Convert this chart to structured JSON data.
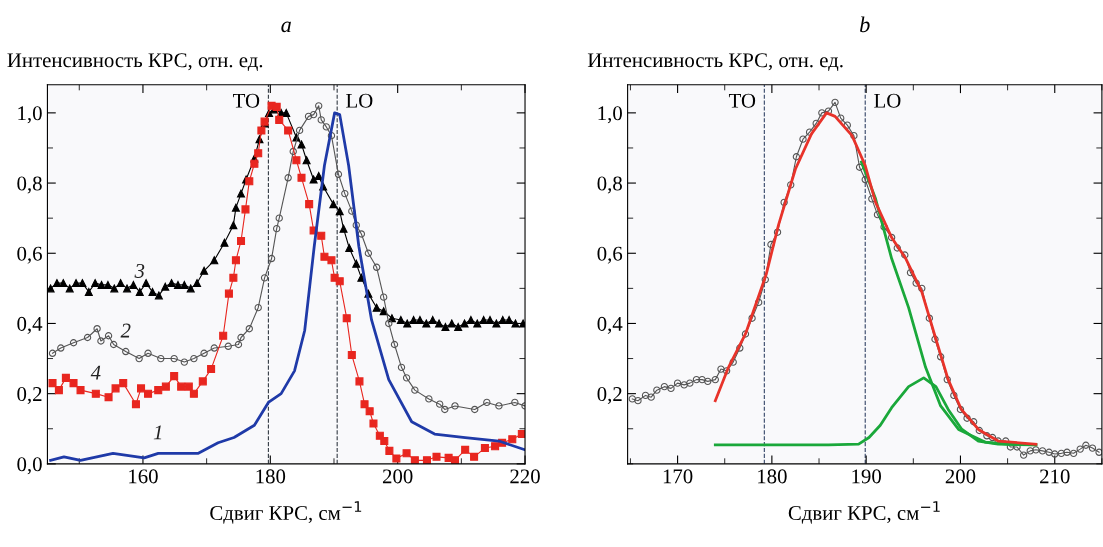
{
  "chart_data": [
    {
      "type": "line",
      "title": "a",
      "ylabel": "Интенсивность КРС, отн. ед.",
      "xlabel": "Сдвиг КРС, см$^{−1}$",
      "xlim": [
        145,
        220
      ],
      "xticks": [
        160,
        180,
        200,
        220
      ],
      "ylim": [
        0,
        1.08
      ],
      "yticks": [
        {
          "value": 0,
          "label": "0,0"
        },
        {
          "value": 0.2,
          "label": "0,2"
        },
        {
          "value": 0.4,
          "label": "0,4"
        },
        {
          "value": 0.6,
          "label": "0,6"
        },
        {
          "value": 0.8,
          "label": "0,8"
        },
        {
          "value": 1.0,
          "label": "1,0"
        }
      ],
      "ref_lines": [
        {
          "axis": "x",
          "value": 179.7,
          "label": "TO",
          "color": "#333a44",
          "line_style": "dashed"
        },
        {
          "axis": "x",
          "value": 190.5,
          "label": "LO",
          "color": "#333a44",
          "line_style": "dashed"
        }
      ],
      "series": [
        {
          "name": "3",
          "color": "#000000",
          "marker": "triangle",
          "x": [
            145.5,
            146.5,
            147.5,
            148.5,
            149.5,
            150.5,
            151.5,
            152.5,
            153.5,
            154.5,
            155.5,
            156.5,
            157.5,
            158.5,
            159.5,
            160.5,
            161.5,
            162.5,
            163.5,
            164.5,
            165.5,
            166.5,
            167.5,
            168.5,
            169.6,
            171.2,
            172.8,
            174.2,
            174.6,
            175.4,
            176.2,
            177.5,
            178.3,
            179.1,
            179.8,
            180.6,
            181.7,
            182.5,
            184.1,
            184.9,
            185.7,
            186.8,
            187.6,
            188.3,
            189.9,
            190.9,
            191.5,
            192.4,
            193.5,
            194.3,
            195.4,
            196.7,
            197.8,
            199.1,
            200.5,
            201.5,
            202.5,
            203.5,
            204.5,
            205.5,
            206.5,
            207.5,
            208.5,
            209.5,
            210.5,
            211.5,
            212.5,
            213.5,
            214.5,
            215.5,
            216.5,
            217.5,
            218.5,
            219.7
          ],
          "values": [
            0.5,
            0.515,
            0.515,
            0.5,
            0.515,
            0.515,
            0.49,
            0.515,
            0.51,
            0.51,
            0.5,
            0.515,
            0.5,
            0.51,
            0.49,
            0.515,
            0.49,
            0.48,
            0.505,
            0.515,
            0.51,
            0.51,
            0.5,
            0.515,
            0.55,
            0.58,
            0.63,
            0.68,
            0.73,
            0.77,
            0.81,
            0.87,
            0.925,
            0.97,
            1.0,
            1.01,
            1.0,
            1.0,
            0.93,
            0.91,
            0.865,
            0.81,
            0.82,
            0.79,
            0.74,
            0.72,
            0.67,
            0.615,
            0.57,
            0.53,
            0.485,
            0.445,
            0.435,
            0.415,
            0.41,
            0.4,
            0.41,
            0.41,
            0.4,
            0.41,
            0.4,
            0.39,
            0.4,
            0.39,
            0.4,
            0.41,
            0.4,
            0.41,
            0.41,
            0.4,
            0.41,
            0.41,
            0.4,
            0.4
          ]
        },
        {
          "name": "2",
          "color": "#555555",
          "marker": "circle",
          "x": [
            145.8,
            147.1,
            149.1,
            151.3,
            152.8,
            153.4,
            154.6,
            155.4,
            157.3,
            159.4,
            160.8,
            162.8,
            164.9,
            166.5,
            168,
            169.6,
            171.2,
            173.4,
            175,
            175.4,
            176.7,
            178.1,
            179.1,
            180.2,
            181,
            181.4,
            182.8,
            183.6,
            184.6,
            186,
            186.8,
            187.6,
            188,
            188.8,
            189.6,
            190.7,
            191.7,
            192.8,
            193.5,
            194.3,
            195.4,
            196.7,
            197.8,
            198.6,
            199.5,
            200.6,
            201.4,
            202.7,
            204.9,
            206.6,
            207.4,
            209,
            212.1,
            214,
            215.9,
            218.4,
            220
          ],
          "values": [
            0.315,
            0.33,
            0.345,
            0.36,
            0.385,
            0.35,
            0.365,
            0.34,
            0.32,
            0.3,
            0.315,
            0.3,
            0.3,
            0.29,
            0.3,
            0.315,
            0.33,
            0.335,
            0.34,
            0.36,
            0.385,
            0.445,
            0.53,
            0.585,
            0.67,
            0.7,
            0.815,
            0.89,
            0.95,
            0.99,
            0.995,
            1.02,
            0.98,
            0.96,
            0.935,
            0.825,
            0.77,
            0.72,
            0.68,
            0.655,
            0.6,
            0.56,
            0.475,
            0.4,
            0.34,
            0.275,
            0.245,
            0.21,
            0.185,
            0.17,
            0.155,
            0.165,
            0.155,
            0.175,
            0.165,
            0.175,
            0.165
          ]
        },
        {
          "name": "4",
          "color": "#e8261f",
          "marker": "square",
          "x": [
            145.8,
            146.8,
            147.9,
            149.1,
            150.2,
            152.6,
            154.6,
            155.7,
            156.9,
            158.9,
            159.7,
            160.8,
            162.4,
            163.6,
            164.9,
            166,
            167.2,
            168,
            169.4,
            170.7,
            172.6,
            173.5,
            174.2,
            174.6,
            175.4,
            176.1,
            176.7,
            177.5,
            178.1,
            178.6,
            179.1,
            180.2,
            181,
            181.4,
            182.8,
            184.1,
            184.9,
            186.1,
            186.8,
            188,
            188.5,
            189.6,
            190.1,
            190.9,
            192,
            192.8,
            194,
            194.8,
            195.6,
            196.2,
            197.2,
            197.9,
            198.7,
            199.8,
            201.4,
            202.7,
            204.6,
            206.1,
            208,
            209,
            210.6,
            212,
            213.7,
            215.3,
            216.4,
            218,
            219.5
          ],
          "values": [
            0.23,
            0.21,
            0.245,
            0.23,
            0.21,
            0.2,
            0.19,
            0.215,
            0.23,
            0.17,
            0.215,
            0.2,
            0.21,
            0.22,
            0.25,
            0.22,
            0.22,
            0.2,
            0.235,
            0.27,
            0.365,
            0.485,
            0.53,
            0.58,
            0.635,
            0.725,
            0.805,
            0.855,
            0.885,
            0.95,
            0.975,
            1.02,
            1.017,
            0.98,
            0.95,
            0.865,
            0.815,
            0.74,
            0.665,
            0.65,
            0.59,
            0.58,
            0.53,
            0.52,
            0.415,
            0.31,
            0.235,
            0.17,
            0.15,
            0.115,
            0.08,
            0.065,
            0.037,
            0.015,
            0.03,
            0.01,
            0.01,
            0.02,
            0.017,
            0.01,
            0.04,
            0.02,
            0.045,
            0.05,
            0.06,
            0.07,
            0.085
          ]
        },
        {
          "name": "1",
          "color": "#1f3aa8",
          "marker": "none",
          "x": [
            145.5,
            147.6,
            150.2,
            155.3,
            160.2,
            162.4,
            168.7,
            171.8,
            174.3,
            177.5,
            179.7,
            181.7,
            183.8,
            185.4,
            186.9,
            188.5,
            190.1,
            190.9,
            192.3,
            193.9,
            195.9,
            198.6,
            202.2,
            205.8,
            210.6,
            215.9,
            220
          ],
          "values": [
            0.01,
            0.02,
            0.01,
            0.03,
            0.017,
            0.03,
            0.03,
            0.06,
            0.075,
            0.11,
            0.175,
            0.2,
            0.265,
            0.38,
            0.62,
            0.85,
            1.0,
            0.995,
            0.85,
            0.62,
            0.41,
            0.24,
            0.12,
            0.085,
            0.075,
            0.065,
            0.04
          ]
        }
      ]
    },
    {
      "type": "line",
      "title": "b",
      "ylabel": "Интенсивность КРС, отн. ед.",
      "xlabel": "Сдвиг КРС, см$^{−1}$",
      "xlim": [
        164.7,
        215
      ],
      "xticks": [
        170,
        180,
        190,
        200,
        210
      ],
      "ylim": [
        0,
        1.08
      ],
      "yticks": [
        {
          "value": 0.2,
          "label": "0,2"
        },
        {
          "value": 0.4,
          "label": "0,4"
        },
        {
          "value": 0.6,
          "label": "0,6"
        },
        {
          "value": 0.8,
          "label": "0,8"
        },
        {
          "value": 1.0,
          "label": "1,0"
        }
      ],
      "ref_lines": [
        {
          "axis": "x",
          "value": 179.2,
          "label": "TO",
          "color": "#334466",
          "line_style": "dashed"
        },
        {
          "axis": "x",
          "value": 189.9,
          "label": "LO",
          "color": "#334466",
          "line_style": "dashed"
        }
      ],
      "series": [
        {
          "color": "#555555",
          "marker": "circle",
          "x": [
            165.2,
            165.8,
            166.6,
            167.2,
            167.8,
            168.6,
            169.3,
            170,
            170.7,
            171.3,
            172,
            172.6,
            173.2,
            174,
            174.6,
            175.2,
            175.9,
            176.6,
            177.2,
            177.9,
            178.6,
            179.3,
            179.9,
            180.6,
            181.3,
            182,
            182.6,
            183.3,
            184,
            184.7,
            185.3,
            186,
            186.7,
            187.3,
            188,
            188.7,
            189.3,
            189.9,
            190.6,
            191.2,
            191.9,
            192.7,
            193.3,
            194.1,
            194.7,
            195.3,
            195.9,
            196.7,
            197.3,
            197.9,
            198.6,
            199.3,
            200,
            200.7,
            201.4,
            202,
            202.8,
            203.4,
            204,
            204.8,
            205.3,
            206,
            206.7,
            207.4,
            208,
            208.7,
            209.4,
            210,
            210.7,
            211.3,
            212,
            212.7,
            213.3,
            214,
            214.7
          ],
          "values": [
            0.185,
            0.18,
            0.195,
            0.19,
            0.21,
            0.22,
            0.215,
            0.23,
            0.225,
            0.23,
            0.24,
            0.24,
            0.235,
            0.24,
            0.27,
            0.265,
            0.29,
            0.33,
            0.37,
            0.415,
            0.46,
            0.525,
            0.625,
            0.66,
            0.745,
            0.795,
            0.875,
            0.925,
            0.945,
            0.97,
            1.0,
            1.005,
            1.03,
            0.985,
            0.965,
            0.935,
            0.845,
            0.81,
            0.755,
            0.71,
            0.675,
            0.645,
            0.615,
            0.595,
            0.545,
            0.515,
            0.5,
            0.415,
            0.355,
            0.305,
            0.24,
            0.195,
            0.155,
            0.13,
            0.12,
            0.095,
            0.08,
            0.075,
            0.065,
            0.065,
            0.048,
            0.048,
            0.025,
            0.037,
            0.04,
            0.037,
            0.033,
            0.028,
            0.03,
            0.033,
            0.03,
            0.042,
            0.053,
            0.045,
            0.033
          ]
        },
        {
          "color": "#1aa83a",
          "marker": "none",
          "x": [
            174,
            178,
            182,
            186,
            189.2,
            190.3,
            191.5,
            192.7,
            194.5,
            196.1,
            197.4,
            198.7,
            200.1,
            201.9,
            204,
            208
          ],
          "values": [
            0.054,
            0.054,
            0.054,
            0.054,
            0.056,
            0.075,
            0.11,
            0.16,
            0.22,
            0.245,
            0.22,
            0.155,
            0.1,
            0.065,
            0.056,
            0.054
          ]
        },
        {
          "color": "#1aa83a",
          "marker": "none",
          "x": [
            189.5,
            191,
            192.7,
            194.5,
            196.3,
            197.9,
            199.8,
            202.6,
            205,
            208
          ],
          "values": [
            0.86,
            0.755,
            0.585,
            0.445,
            0.275,
            0.165,
            0.098,
            0.062,
            0.056,
            0.054
          ]
        },
        {
          "color": "#e8332a",
          "marker": "none",
          "x": [
            174,
            175.4,
            177.2,
            179.4,
            180.7,
            182.5,
            184.2,
            185.8,
            186.7,
            188.5,
            189.9,
            191,
            192.7,
            194.2,
            195.9,
            197.4,
            198.7,
            200.1,
            201.9,
            204,
            208
          ],
          "values": [
            0.18,
            0.275,
            0.37,
            0.54,
            0.68,
            0.84,
            0.94,
            1.0,
            0.99,
            0.935,
            0.85,
            0.745,
            0.645,
            0.585,
            0.49,
            0.355,
            0.24,
            0.155,
            0.098,
            0.065,
            0.056
          ]
        }
      ]
    }
  ]
}
